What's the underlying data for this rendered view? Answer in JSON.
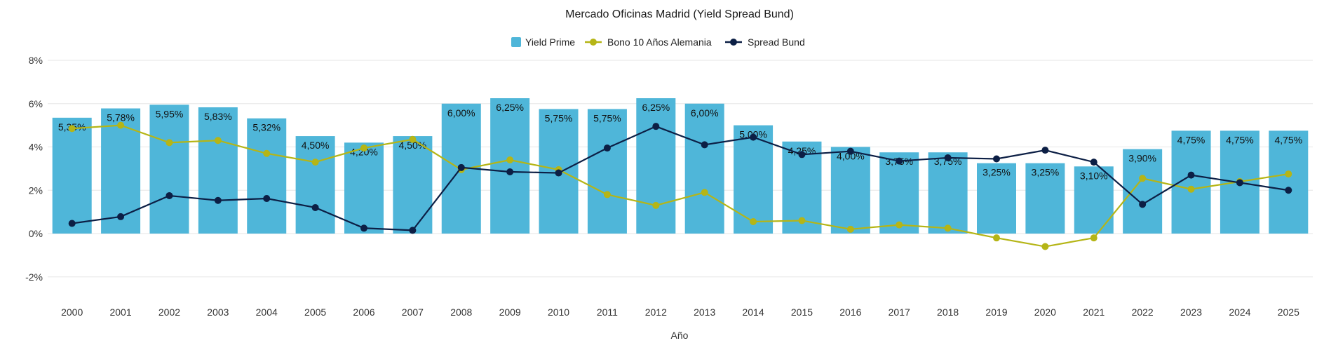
{
  "chart_data": {
    "type": "bar",
    "title": "Mercado Oficinas Madrid (Yield Spread Bund)",
    "xlabel": "Año",
    "ylabel": "",
    "ylim": [
      -3,
      8
    ],
    "yticks": [
      -2,
      0,
      2,
      4,
      6,
      8
    ],
    "ytick_labels": [
      "-2%",
      "0%",
      "2%",
      "4%",
      "6%",
      "8%"
    ],
    "grid": true,
    "legend_position": "top-center",
    "categories": [
      "2000",
      "2001",
      "2002",
      "2003",
      "2004",
      "2005",
      "2006",
      "2007",
      "2008",
      "2009",
      "2010",
      "2011",
      "2012",
      "2013",
      "2014",
      "2015",
      "2016",
      "2017",
      "2018",
      "2019",
      "2020",
      "2021",
      "2022",
      "2023",
      "2024",
      "2025"
    ],
    "series": [
      {
        "name": "Yield Prime",
        "kind": "bar",
        "color": "#4fb6d9",
        "values": [
          5.35,
          5.78,
          5.95,
          5.83,
          5.32,
          4.5,
          4.2,
          4.5,
          6.0,
          6.25,
          5.75,
          5.75,
          6.25,
          6.0,
          5.0,
          4.25,
          4.0,
          3.75,
          3.75,
          3.25,
          3.25,
          3.1,
          3.9,
          4.75,
          4.75,
          4.75
        ],
        "labels": [
          "5,35%",
          "5,78%",
          "5,95%",
          "5,83%",
          "5,32%",
          "4,50%",
          "4,20%",
          "4,50%",
          "6,00%",
          "6,25%",
          "5,75%",
          "5,75%",
          "6,25%",
          "6,00%",
          "5,00%",
          "4,25%",
          "4,00%",
          "3,75%",
          "3,75%",
          "3,25%",
          "3,25%",
          "3,10%",
          "3,90%",
          "4,75%",
          "4,75%",
          "4,75%"
        ]
      },
      {
        "name": "Bono 10 Años Alemania",
        "kind": "line",
        "color": "#b5b516",
        "values": [
          4.85,
          5.0,
          4.2,
          4.3,
          3.7,
          3.3,
          3.95,
          4.35,
          2.95,
          3.4,
          2.95,
          1.8,
          1.3,
          1.9,
          0.55,
          0.6,
          0.2,
          0.4,
          0.25,
          -0.2,
          -0.6,
          -0.2,
          2.55,
          2.05,
          2.4,
          2.75
        ]
      },
      {
        "name": "Spread Bund",
        "kind": "line",
        "color": "#0c1f45",
        "values": [
          0.47,
          0.78,
          1.75,
          1.53,
          1.62,
          1.2,
          0.25,
          0.15,
          3.05,
          2.85,
          2.8,
          3.95,
          4.95,
          4.1,
          4.45,
          3.65,
          3.8,
          3.35,
          3.5,
          3.45,
          3.85,
          3.3,
          1.35,
          2.7,
          2.35,
          2.0
        ]
      }
    ]
  }
}
